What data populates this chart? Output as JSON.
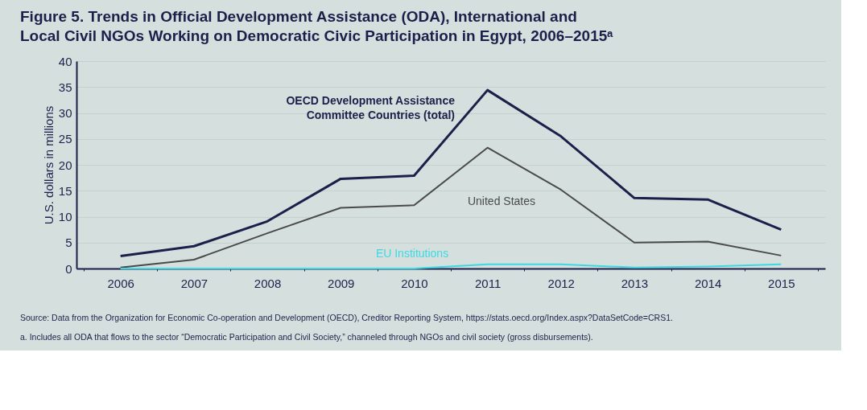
{
  "chart_data": {
    "type": "line",
    "title": "Figure 5. Trends in Official Development Assistance (ODA), International and Local Civil NGOs Working on Democratic Civic Participation in Egypt, 2006–2015ᵃ",
    "ylabel": "U.S. dollars in millions",
    "categories": [
      "2006",
      "2007",
      "2008",
      "2009",
      "2010",
      "2011",
      "2012",
      "2013",
      "2014",
      "2015"
    ],
    "series": [
      {
        "name": "OECD Development Assistance Committee Countries (total)",
        "color": "#1b1f4a",
        "values": [
          2.4,
          4.3,
          9.1,
          17.3,
          17.9,
          34.4,
          25.5,
          13.6,
          13.3,
          7.5
        ]
      },
      {
        "name": "United States",
        "color": "#4a4a4a",
        "values": [
          0.2,
          1.7,
          6.8,
          11.7,
          12.2,
          23.3,
          15.2,
          5.0,
          5.2,
          2.5
        ]
      },
      {
        "name": "EU Institutions",
        "color": "#3fd8e2",
        "values": [
          0,
          0,
          0,
          0,
          0,
          0.8,
          0.8,
          0.2,
          0.4,
          0.8
        ]
      }
    ],
    "ylim": [
      0,
      40
    ],
    "yticks": [
      0,
      5,
      10,
      15,
      20,
      25,
      30,
      35,
      40
    ],
    "grid": "y",
    "legend": false,
    "marker": "none",
    "line_style": "solid",
    "annotations": [
      "Source: Data from the Organization for Economic Co-operation and Development (OECD), Creditor Reporting System, https://stats.oecd.org/Index.aspx?DataSetCode=CRS1.",
      "a. Includes all ODA that flows to the sector “Democratic Participation and Civil Society,” channeled through NGOs and civil society (gross disbursements)."
    ]
  }
}
